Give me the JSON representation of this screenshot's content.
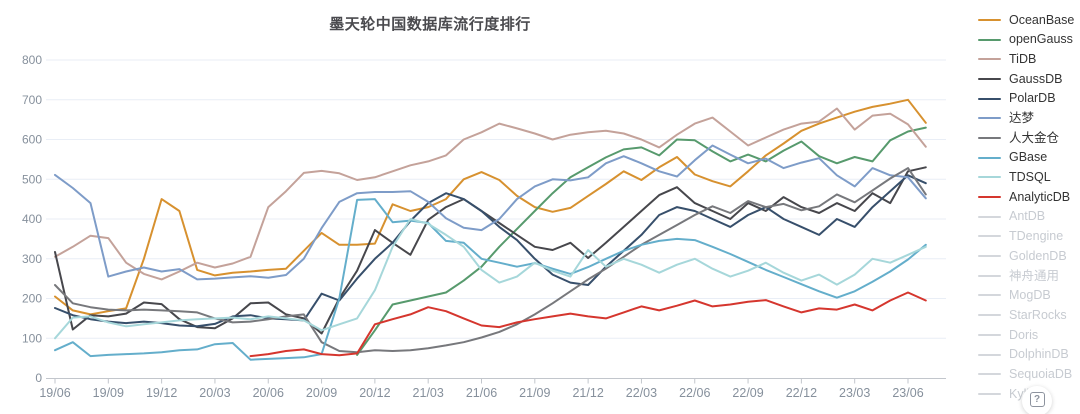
{
  "title": "墨天轮中国数据库流行度排行",
  "help_button": {
    "icon": "question-mark-icon",
    "label": "?"
  },
  "axis_colors": {
    "grid": "#e9eef6",
    "axis_line": "#c2c6cc",
    "tick_label": "#86909c"
  },
  "legend": {
    "position": "right",
    "active_text_color": "#333333",
    "inactive_text_color": "#c7cbd1",
    "inactive_swatch_color": "#d4d7dc",
    "items": [
      {
        "label": "OceanBase",
        "color": "#d7912f",
        "enabled": true
      },
      {
        "label": "openGauss",
        "color": "#579a6d",
        "enabled": true
      },
      {
        "label": "TiDB",
        "color": "#c4a29a",
        "enabled": true
      },
      {
        "label": "GaussDB",
        "color": "#47474c",
        "enabled": true
      },
      {
        "label": "PolarDB",
        "color": "#374f6b",
        "enabled": true
      },
      {
        "label": "达梦",
        "color": "#7e9cc8",
        "enabled": true
      },
      {
        "label": "人大金仓",
        "color": "#77787c",
        "enabled": true
      },
      {
        "label": "GBase",
        "color": "#64aecb",
        "enabled": true
      },
      {
        "label": "TDSQL",
        "color": "#a6d7da",
        "enabled": true
      },
      {
        "label": "AnalyticDB",
        "color": "#d5362e",
        "enabled": true
      },
      {
        "label": "AntDB",
        "color": "#d4d7dc",
        "enabled": false
      },
      {
        "label": "TDengine",
        "color": "#d4d7dc",
        "enabled": false
      },
      {
        "label": "GoldenDB",
        "color": "#d4d7dc",
        "enabled": false
      },
      {
        "label": "神舟通用",
        "color": "#d4d7dc",
        "enabled": false
      },
      {
        "label": "MogDB",
        "color": "#d4d7dc",
        "enabled": false
      },
      {
        "label": "StarRocks",
        "color": "#d4d7dc",
        "enabled": false
      },
      {
        "label": "Doris",
        "color": "#d4d7dc",
        "enabled": false
      },
      {
        "label": "DolphinDB",
        "color": "#d4d7dc",
        "enabled": false
      },
      {
        "label": "SequoiaDB",
        "color": "#d4d7dc",
        "enabled": false
      },
      {
        "label": "Kylig",
        "color": "#d4d7dc",
        "enabled": false
      }
    ]
  },
  "chart_data": {
    "type": "line",
    "title": "墨天轮中国数据库流行度排行",
    "xlabel": "",
    "ylabel": "",
    "ylim": [
      0,
      800
    ],
    "y_ticks": [
      0,
      100,
      200,
      300,
      400,
      500,
      600,
      700,
      800
    ],
    "grid": true,
    "legend_position": "right",
    "x": [
      "19/06",
      "19/07",
      "19/08",
      "19/09",
      "19/10",
      "19/11",
      "19/12",
      "20/01",
      "20/02",
      "20/03",
      "20/04",
      "20/05",
      "20/06",
      "20/07",
      "20/08",
      "20/09",
      "20/10",
      "20/11",
      "20/12",
      "21/01",
      "21/02",
      "21/03",
      "21/04",
      "21/05",
      "21/06",
      "21/07",
      "21/08",
      "21/09",
      "21/10",
      "21/11",
      "21/12",
      "22/01",
      "22/02",
      "22/03",
      "22/04",
      "22/05",
      "22/06",
      "22/07",
      "22/08",
      "22/09",
      "22/10",
      "22/11",
      "22/12",
      "23/01",
      "23/02",
      "23/03",
      "23/04",
      "23/05",
      "23/06",
      "23/07"
    ],
    "x_tick_labels": [
      "19/06",
      "19/09",
      "19/12",
      "20/03",
      "20/06",
      "20/09",
      "20/12",
      "21/03",
      "21/06",
      "21/09",
      "21/12",
      "22/03",
      "22/06",
      "22/09",
      "22/12",
      "23/03",
      "23/06"
    ],
    "x_tick_indices": [
      0,
      3,
      6,
      9,
      12,
      15,
      18,
      21,
      24,
      27,
      30,
      33,
      36,
      39,
      42,
      45,
      48
    ],
    "series": [
      {
        "name": "OceanBase",
        "color": "#d7912f",
        "values": [
          205,
          170,
          160,
          168,
          175,
          300,
          450,
          420,
          272,
          258,
          265,
          268,
          272,
          275,
          320,
          365,
          335,
          335,
          338,
          437,
          420,
          430,
          450,
          500,
          518,
          498,
          458,
          430,
          418,
          428,
          458,
          488,
          520,
          498,
          530,
          556,
          512,
          495,
          482,
          520,
          560,
          590,
          622,
          640,
          655,
          670,
          682,
          690,
          700,
          642
        ]
      },
      {
        "name": "openGauss",
        "color": "#579a6d",
        "values": [
          null,
          null,
          null,
          null,
          null,
          null,
          null,
          null,
          null,
          null,
          null,
          null,
          null,
          null,
          null,
          null,
          null,
          58,
          120,
          185,
          195,
          205,
          215,
          245,
          280,
          330,
          375,
          420,
          465,
          505,
          530,
          555,
          575,
          580,
          560,
          600,
          598,
          570,
          545,
          562,
          545,
          572,
          595,
          558,
          540,
          556,
          545,
          598,
          620,
          630
        ]
      },
      {
        "name": "TiDB",
        "color": "#c4a29a",
        "values": [
          305,
          330,
          358,
          352,
          290,
          262,
          248,
          268,
          290,
          278,
          288,
          305,
          430,
          470,
          516,
          521,
          515,
          498,
          505,
          520,
          535,
          545,
          560,
          600,
          618,
          640,
          628,
          615,
          600,
          612,
          618,
          622,
          615,
          600,
          580,
          612,
          640,
          655,
          620,
          585,
          605,
          625,
          640,
          645,
          678,
          625,
          660,
          665,
          638,
          582
        ]
      },
      {
        "name": "GaussDB",
        "color": "#47474c",
        "values": [
          317,
          122,
          158,
          155,
          162,
          190,
          186,
          148,
          128,
          125,
          150,
          188,
          190,
          160,
          150,
          112,
          200,
          270,
          372,
          340,
          310,
          398,
          430,
          450,
          420,
          390,
          360,
          330,
          322,
          340,
          302,
          340,
          380,
          420,
          460,
          480,
          440,
          420,
          400,
          440,
          420,
          455,
          430,
          415,
          440,
          420,
          465,
          440,
          520,
          530
        ]
      },
      {
        "name": "PolarDB",
        "color": "#374f6b",
        "values": [
          176,
          158,
          148,
          142,
          138,
          142,
          138,
          132,
          130,
          136,
          155,
          158,
          150,
          148,
          145,
          212,
          195,
          250,
          300,
          340,
          395,
          440,
          465,
          450,
          420,
          380,
          347,
          300,
          260,
          240,
          234,
          280,
          320,
          360,
          410,
          430,
          420,
          400,
          380,
          410,
          430,
          400,
          380,
          360,
          400,
          380,
          430,
          470,
          510,
          490
        ]
      },
      {
        "name": "达梦",
        "color": "#7e9cc8",
        "values": [
          511,
          478,
          440,
          255,
          268,
          278,
          268,
          274,
          248,
          250,
          253,
          256,
          252,
          259,
          300,
          377,
          443,
          465,
          468,
          468,
          470,
          443,
          402,
          378,
          372,
          400,
          450,
          482,
          500,
          497,
          505,
          540,
          558,
          540,
          520,
          507,
          548,
          585,
          562,
          540,
          552,
          528,
          542,
          553,
          510,
          482,
          528,
          510,
          505,
          452
        ]
      },
      {
        "name": "人大金仓",
        "color": "#77787c",
        "values": [
          234,
          188,
          178,
          172,
          170,
          172,
          170,
          168,
          165,
          150,
          140,
          142,
          148,
          155,
          160,
          90,
          68,
          65,
          70,
          68,
          70,
          75,
          82,
          90,
          102,
          116,
          135,
          160,
          188,
          218,
          248,
          275,
          305,
          335,
          360,
          385,
          410,
          432,
          415,
          445,
          430,
          438,
          422,
          432,
          462,
          442,
          472,
          502,
          528,
          462
        ]
      },
      {
        "name": "GBase",
        "color": "#64aecb",
        "values": [
          70,
          90,
          55,
          58,
          60,
          62,
          65,
          70,
          72,
          85,
          88,
          46,
          48,
          50,
          52,
          60,
          200,
          448,
          450,
          392,
          396,
          390,
          345,
          340,
          300,
          290,
          280,
          289,
          275,
          262,
          279,
          300,
          320,
          335,
          345,
          350,
          347,
          330,
          312,
          292,
          272,
          254,
          236,
          218,
          202,
          218,
          242,
          268,
          298,
          335
        ]
      },
      {
        "name": "TDSQL",
        "color": "#a6d7da",
        "values": [
          100,
          152,
          155,
          140,
          130,
          135,
          140,
          145,
          148,
          150,
          152,
          148,
          155,
          150,
          145,
          120,
          135,
          150,
          221,
          330,
          400,
          388,
          360,
          330,
          272,
          240,
          255,
          290,
          270,
          255,
          322,
          280,
          300,
          285,
          265,
          285,
          300,
          275,
          255,
          270,
          290,
          265,
          245,
          260,
          235,
          260,
          300,
          290,
          310,
          330
        ]
      },
      {
        "name": "AnalyticDB",
        "color": "#d5362e",
        "values": [
          null,
          null,
          null,
          null,
          null,
          null,
          null,
          null,
          null,
          null,
          null,
          55,
          60,
          68,
          72,
          60,
          57,
          62,
          135,
          148,
          160,
          178,
          168,
          150,
          132,
          128,
          140,
          148,
          155,
          162,
          155,
          150,
          165,
          180,
          170,
          182,
          195,
          180,
          185,
          192,
          196,
          180,
          165,
          175,
          172,
          185,
          170,
          195,
          215,
          195
        ]
      }
    ]
  }
}
